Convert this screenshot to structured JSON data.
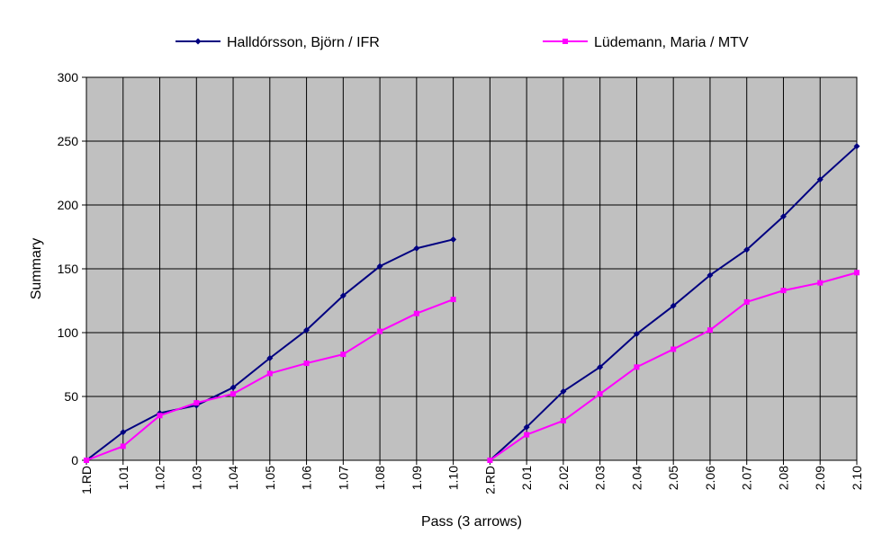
{
  "chart_data": {
    "type": "line",
    "title": "",
    "xlabel": "Pass (3 arrows)",
    "ylabel": "Summary",
    "ylim": [
      0,
      300
    ],
    "yticks": [
      0,
      50,
      100,
      150,
      200,
      250,
      300
    ],
    "grid": true,
    "legend_position": "top",
    "plot_background": "#C0C0C0",
    "categories": [
      "1.RD",
      "1.01",
      "1.02",
      "1.03",
      "1.04",
      "1.05",
      "1.06",
      "1.07",
      "1.08",
      "1.09",
      "1.10",
      "2.RD",
      "2.01",
      "2.02",
      "2.03",
      "2.04",
      "2.05",
      "2.06",
      "2.07",
      "2.08",
      "2.09",
      "2.10"
    ],
    "series": [
      {
        "name": "Halldórsson, Björn / IFR",
        "color": "#000080",
        "marker": "diamond",
        "values": [
          0,
          22,
          37,
          43,
          57,
          80,
          102,
          129,
          152,
          166,
          173,
          0,
          26,
          54,
          73,
          99,
          121,
          145,
          165,
          191,
          220,
          246
        ]
      },
      {
        "name": "Lüdemann, Maria / MTV",
        "color": "#FF00FF",
        "marker": "square",
        "values": [
          0,
          11,
          35,
          45,
          52,
          68,
          76,
          83,
          101,
          115,
          126,
          0,
          20,
          31,
          52,
          73,
          87,
          102,
          124,
          133,
          139,
          147
        ]
      }
    ],
    "segments": [
      [
        0,
        10
      ],
      [
        11,
        21
      ]
    ]
  }
}
